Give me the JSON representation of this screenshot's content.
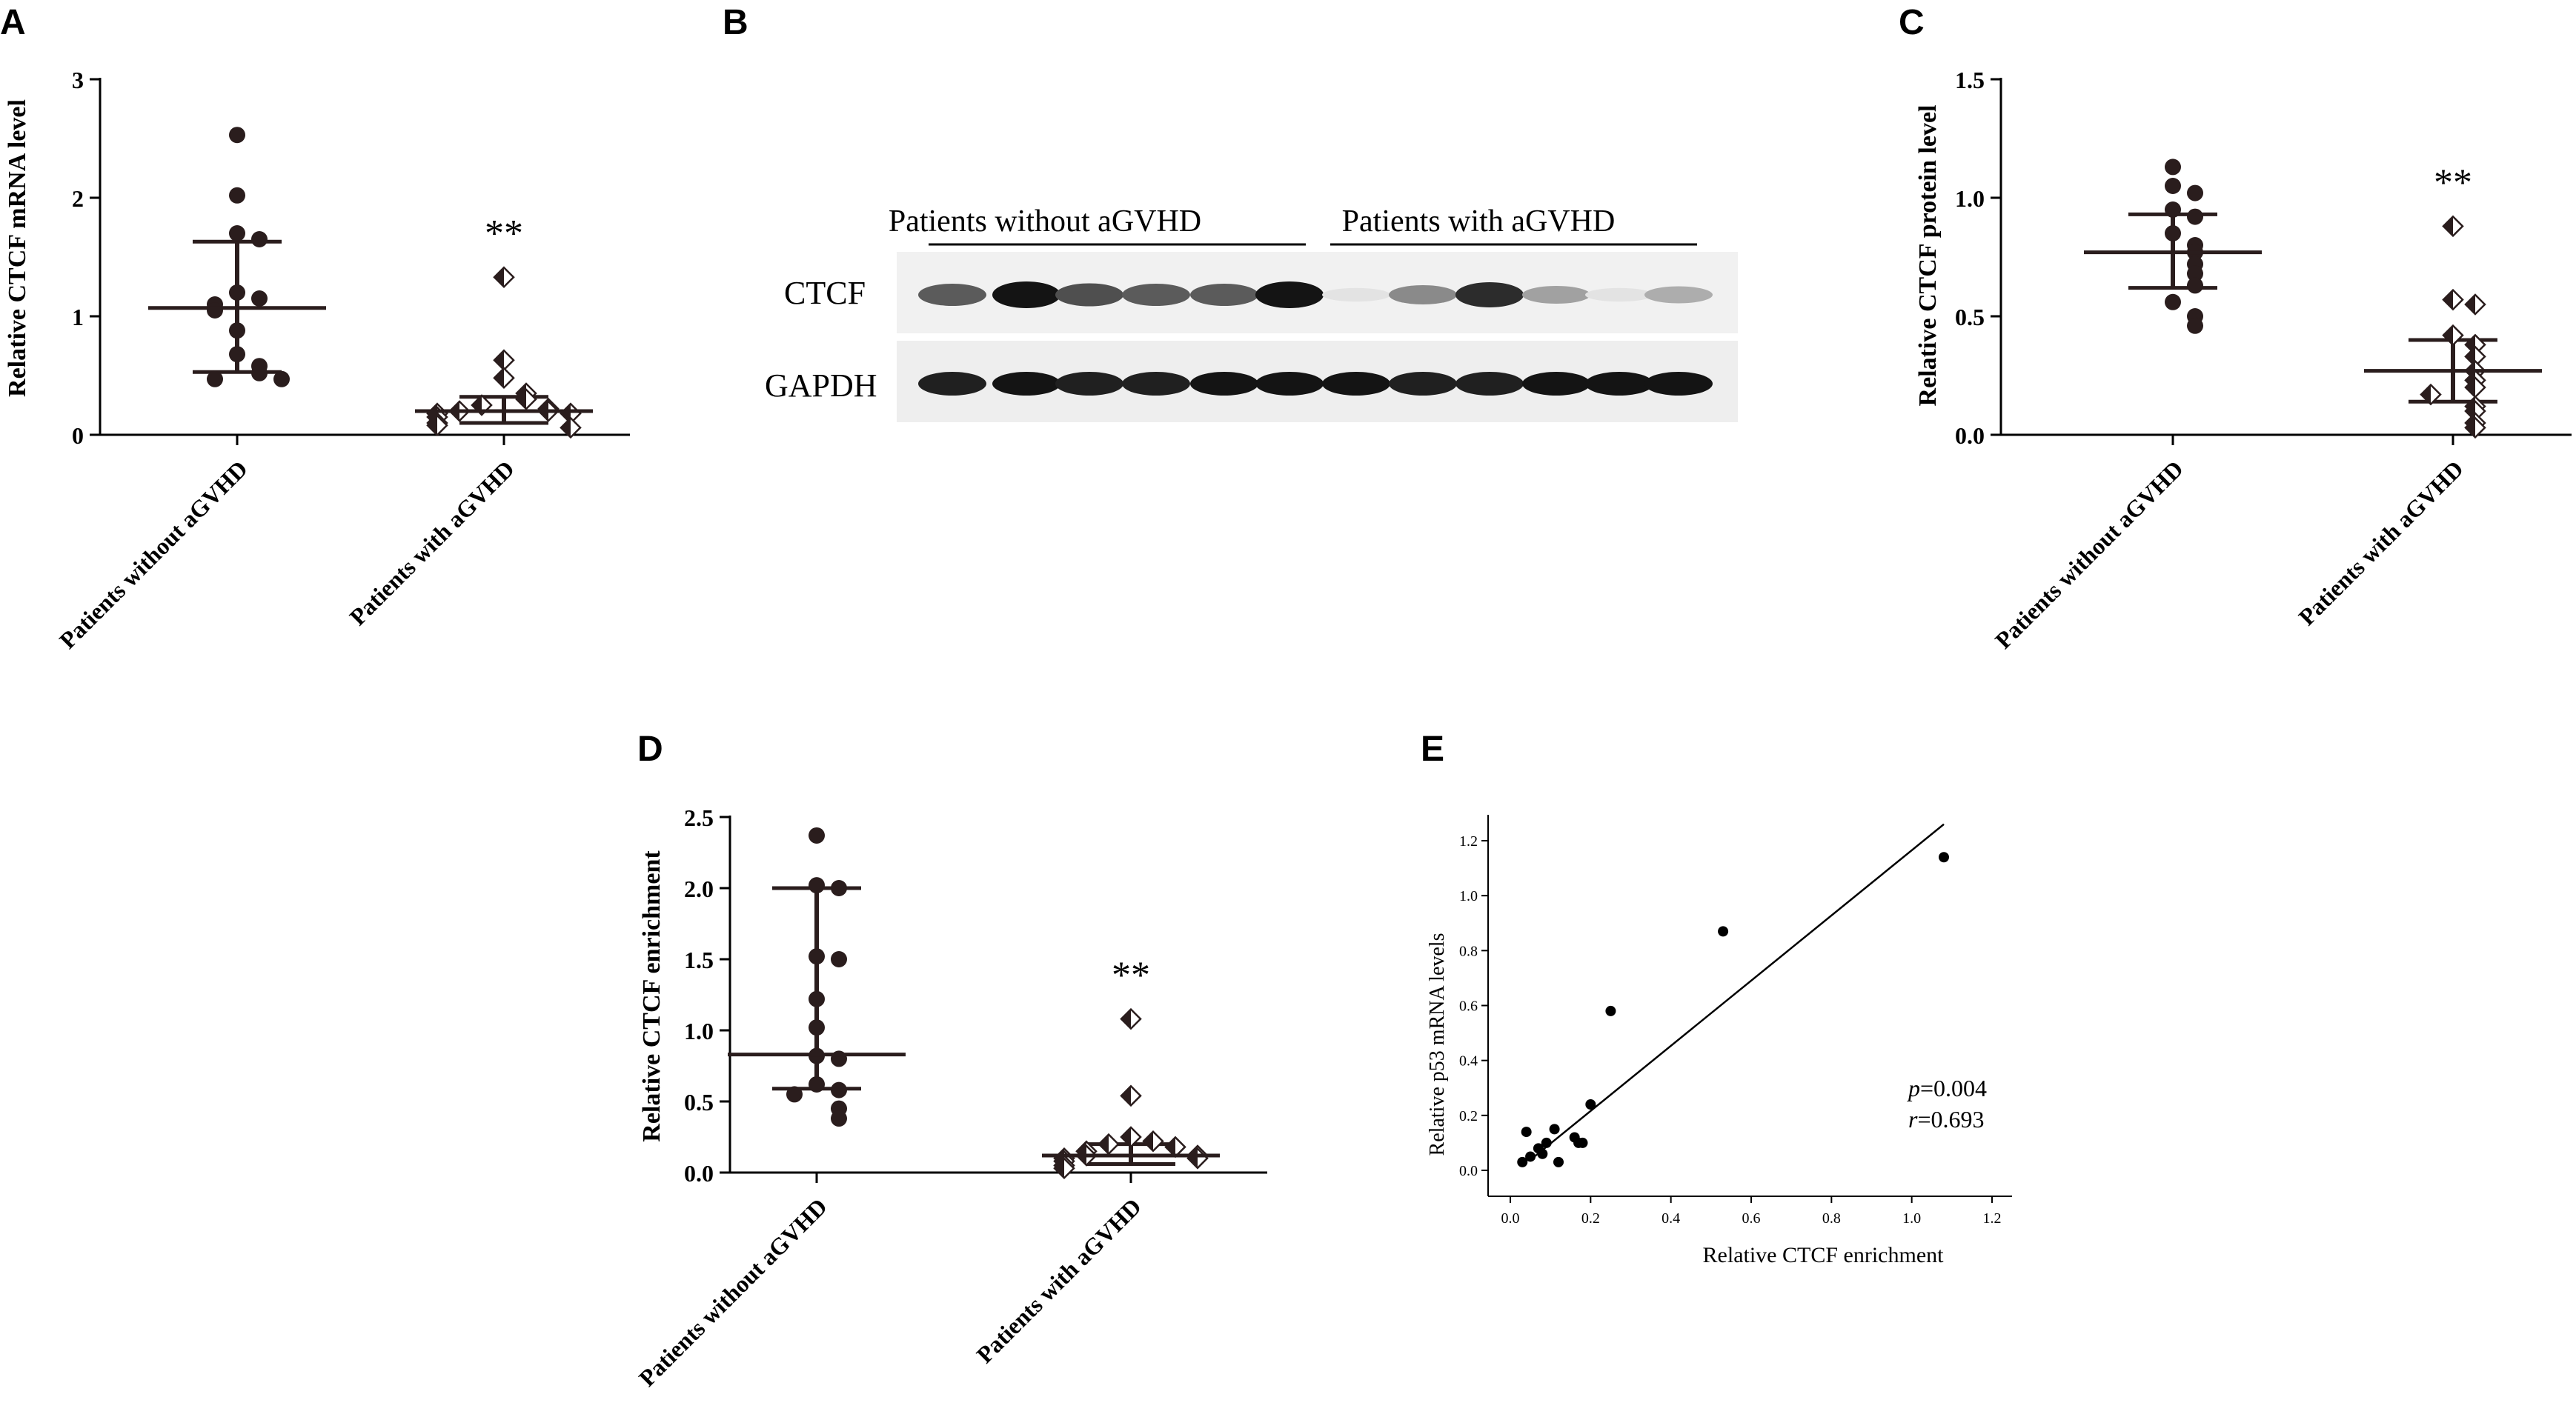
{
  "panels": {
    "A": "A",
    "B": "B",
    "C": "C",
    "D": "D",
    "E": "E"
  },
  "chart_data": [
    {
      "panel": "A",
      "type": "scatter",
      "ylabel": "Relative CTCF mRNA level",
      "categories": [
        "Patients without aGVHD",
        "Patients with aGVHD"
      ],
      "yticks": [
        "0",
        "1",
        "2",
        "3"
      ],
      "ylim": [
        0,
        3
      ],
      "significance": "**",
      "series": [
        {
          "marker": "circle",
          "values": [
            2.53,
            2.02,
            1.7,
            1.65,
            1.2,
            1.15,
            1.1,
            1.05,
            0.88,
            0.68,
            0.58,
            0.52,
            0.47,
            0.47
          ],
          "median": 1.07,
          "lower": 0.53,
          "upper": 1.63
        },
        {
          "marker": "diamond",
          "values": [
            1.33,
            0.63,
            0.48,
            0.35,
            0.3,
            0.25,
            0.22,
            0.2,
            0.2,
            0.18,
            0.18,
            0.15,
            0.1,
            0.08,
            0.06
          ],
          "median": 0.2,
          "lower": 0.1,
          "upper": 0.32
        }
      ]
    },
    {
      "panel": "B",
      "type": "blot",
      "group_labels": [
        "Patients without aGVHD",
        "Patients with aGVHD"
      ],
      "row_labels": [
        "CTCF",
        "GAPDH"
      ],
      "ctcf_intensity": [
        0.7,
        1.0,
        0.75,
        0.7,
        0.7,
        1.0,
        0.12,
        0.5,
        0.9,
        0.4,
        0.12,
        0.35
      ],
      "gapdh_intensity": [
        0.95,
        1.0,
        0.95,
        0.95,
        1.0,
        1.0,
        1.0,
        0.95,
        0.95,
        1.0,
        1.0,
        1.0
      ]
    },
    {
      "panel": "C",
      "type": "scatter",
      "ylabel": "Relative CTCF protein level",
      "categories": [
        "Patients without aGVHD",
        "Patients with aGVHD"
      ],
      "yticks": [
        "0.0",
        "0.5",
        "1.0",
        "1.5"
      ],
      "ylim": [
        0,
        1.5
      ],
      "significance": "**",
      "series": [
        {
          "marker": "circle",
          "values": [
            1.13,
            1.05,
            1.02,
            0.95,
            0.92,
            0.85,
            0.8,
            0.77,
            0.72,
            0.68,
            0.63,
            0.56,
            0.5,
            0.46
          ],
          "median": 0.77,
          "lower": 0.62,
          "upper": 0.93
        },
        {
          "marker": "diamond",
          "values": [
            0.88,
            0.57,
            0.55,
            0.42,
            0.38,
            0.33,
            0.27,
            0.23,
            0.2,
            0.17,
            0.12,
            0.1,
            0.05,
            0.03
          ],
          "median": 0.27,
          "lower": 0.14,
          "upper": 0.4
        }
      ]
    },
    {
      "panel": "D",
      "type": "scatter",
      "ylabel": "Relative CTCF enrichment",
      "categories": [
        "Patients without aGVHD",
        "Patients with aGVHD"
      ],
      "yticks": [
        "0.0",
        "0.5",
        "1.0",
        "1.5",
        "2.0",
        "2.5"
      ],
      "ylim": [
        0,
        2.5
      ],
      "significance": "**",
      "series": [
        {
          "marker": "circle",
          "values": [
            2.37,
            2.02,
            2.0,
            1.52,
            1.5,
            1.22,
            1.02,
            0.82,
            0.8,
            0.62,
            0.58,
            0.55,
            0.45,
            0.38
          ],
          "median": 0.83,
          "lower": 0.59,
          "upper": 2.0
        },
        {
          "marker": "diamond",
          "values": [
            1.08,
            0.54,
            0.25,
            0.22,
            0.2,
            0.18,
            0.15,
            0.12,
            0.12,
            0.1,
            0.1,
            0.08,
            0.05,
            0.03
          ],
          "median": 0.12,
          "lower": 0.06,
          "upper": 0.2
        }
      ]
    },
    {
      "panel": "E",
      "type": "scatter",
      "xlabel": "Relative CTCF enrichment",
      "ylabel": "Relative p53 mRNA levels",
      "xticks": [
        "0.0",
        "0.2",
        "0.4",
        "0.6",
        "0.8",
        "1.0",
        "1.2"
      ],
      "yticks": [
        "0.0",
        "0.2",
        "0.4",
        "0.6",
        "0.8",
        "1.0",
        "1.2"
      ],
      "xlim": [
        0,
        1.2
      ],
      "ylim": [
        0,
        1.2
      ],
      "points": [
        [
          1.08,
          1.14
        ],
        [
          0.53,
          0.87
        ],
        [
          0.25,
          0.58
        ],
        [
          0.2,
          0.24
        ],
        [
          0.04,
          0.14
        ],
        [
          0.11,
          0.15
        ],
        [
          0.05,
          0.05
        ],
        [
          0.07,
          0.08
        ],
        [
          0.08,
          0.06
        ],
        [
          0.12,
          0.03
        ],
        [
          0.16,
          0.12
        ],
        [
          0.17,
          0.1
        ],
        [
          0.18,
          0.1
        ],
        [
          0.03,
          0.03
        ],
        [
          0.09,
          0.1
        ]
      ],
      "fit": {
        "x0": 0.06,
        "y0": 0.05,
        "x1": 1.08,
        "y1": 1.26
      },
      "annotation_p": "=0.004",
      "annotation_r": "=0.693"
    }
  ]
}
